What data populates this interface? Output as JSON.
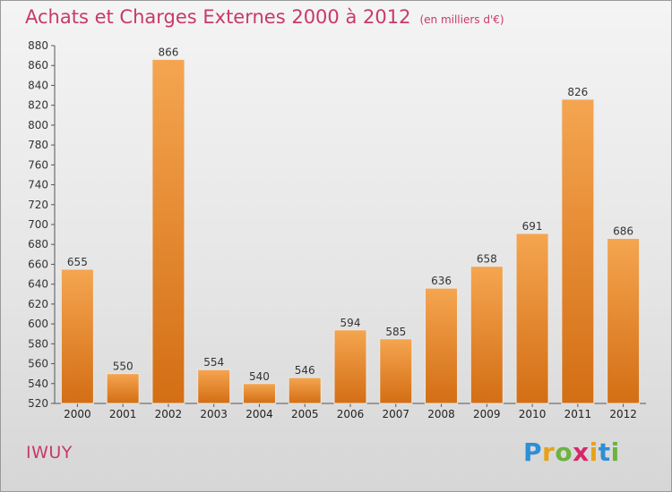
{
  "header": {
    "title": "Achats et Charges Externes 2000 à 2012",
    "subtitle": "(en milliers d'€)"
  },
  "commune": "IWUY",
  "logo": {
    "letters": [
      "P",
      "r",
      "o",
      "x",
      "i",
      "t",
      "i"
    ],
    "colors": [
      "#2d8fd5",
      "#e8a21a",
      "#6cb33f",
      "#d6286b",
      "#e8a21a",
      "#2d8fd5",
      "#6cb33f"
    ]
  },
  "colors": {
    "bar_top": "#f5a550",
    "bar_bottom": "#d36e14",
    "bar_edge": "#e8e8e8",
    "title": "#c8396a"
  },
  "chart_data": {
    "type": "bar",
    "title": "Achats et Charges Externes 2000 à 2012",
    "subtitle": "(en milliers d'€)",
    "categories": [
      "2000",
      "2001",
      "2002",
      "2003",
      "2004",
      "2005",
      "2006",
      "2007",
      "2008",
      "2009",
      "2010",
      "2011",
      "2012"
    ],
    "values": [
      655,
      550,
      866,
      554,
      540,
      546,
      594,
      585,
      636,
      658,
      691,
      826,
      686
    ],
    "ylim": [
      520,
      880
    ],
    "yticks": [
      520,
      540,
      560,
      580,
      600,
      620,
      640,
      660,
      680,
      700,
      720,
      740,
      760,
      780,
      800,
      820,
      840,
      860,
      880
    ],
    "grid": false,
    "legend": "none"
  }
}
